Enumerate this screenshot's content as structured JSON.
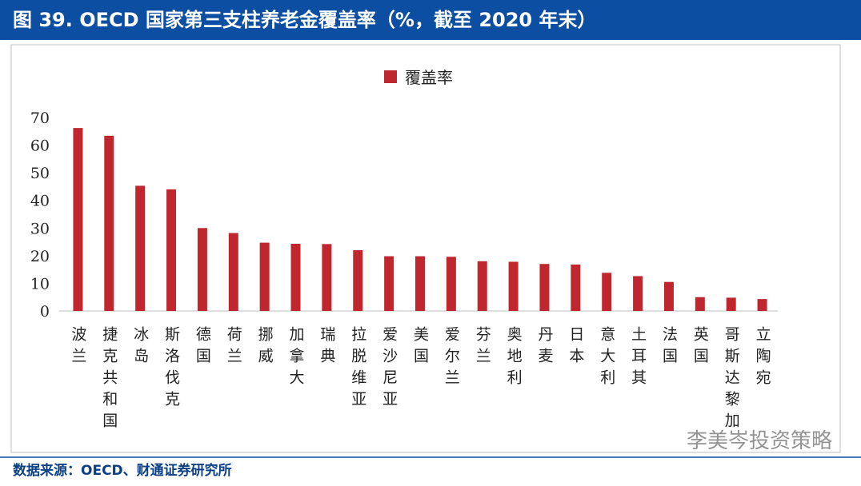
{
  "chart_data": {
    "type": "bar",
    "title": "图 39. OECD 国家第三支柱养老金覆盖率（%，截至 2020 年末）",
    "source": "数据来源：OECD、财通证券研究所",
    "watermark": "李美岑投资策略",
    "categories": [
      "波兰",
      "捷克共和国",
      "冰岛",
      "斯洛伐克",
      "德国",
      "荷兰",
      "挪威",
      "加拿大",
      "瑞典",
      "拉脱维亚",
      "爱沙尼亚",
      "美国",
      "爱尔兰",
      "芬兰",
      "奥地利",
      "丹麦",
      "日本",
      "意大利",
      "土耳其",
      "法国",
      "英国",
      "哥斯达黎加",
      "立陶宛"
    ],
    "series": [
      {
        "name": "覆盖率",
        "color": "#c0262d",
        "values": [
          66.2,
          63.4,
          45.3,
          44.0,
          30.0,
          28.2,
          24.7,
          24.3,
          24.2,
          22.0,
          19.8,
          19.8,
          19.6,
          18.0,
          17.8,
          17.0,
          16.8,
          13.8,
          12.6,
          10.5,
          5.0,
          4.8,
          4.3
        ]
      }
    ],
    "ylim": [
      0,
      70
    ],
    "yticks": [
      0,
      10,
      20,
      30,
      40,
      50,
      60,
      70
    ],
    "grid": false,
    "legend": "top"
  }
}
